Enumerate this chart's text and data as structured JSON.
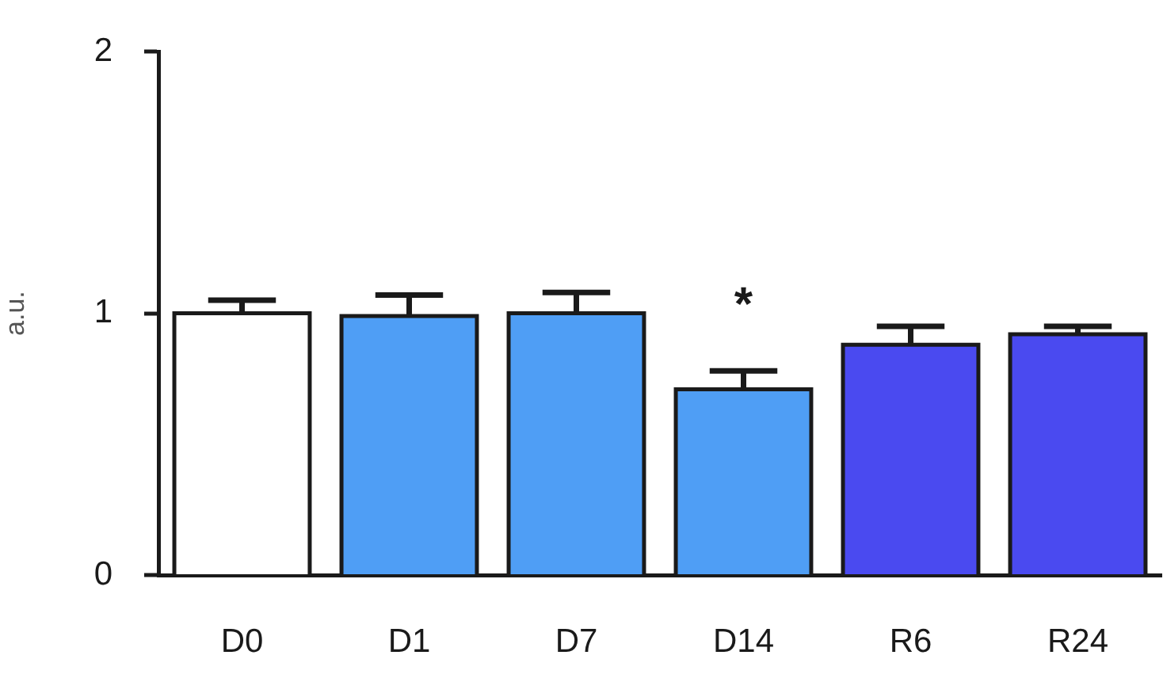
{
  "chart_data": {
    "type": "bar",
    "ylabel": "a.u.",
    "categories": [
      "D0",
      "D1",
      "D7",
      "D14",
      "R6",
      "R24"
    ],
    "values": [
      1.0,
      0.99,
      1.0,
      0.71,
      0.88,
      0.92
    ],
    "colors": [
      "#ffffff",
      "#4f9ef5",
      "#4f9ef5",
      "#4f9ef5",
      "#4a4af0",
      "#4a4af0"
    ],
    "errors": [
      [
        1.0,
        1.05
      ],
      [
        0.99,
        1.07
      ],
      [
        1.0,
        1.08
      ],
      [
        0.71,
        0.78
      ],
      [
        0.88,
        0.95
      ],
      [
        0.92,
        0.95
      ]
    ],
    "ylim": [
      0,
      2
    ],
    "yticks": [
      0,
      1,
      2
    ],
    "grid": false,
    "legend": false,
    "annotations": [
      {
        "text": "*",
        "x": "D14",
        "y": 0.71
      }
    ]
  }
}
